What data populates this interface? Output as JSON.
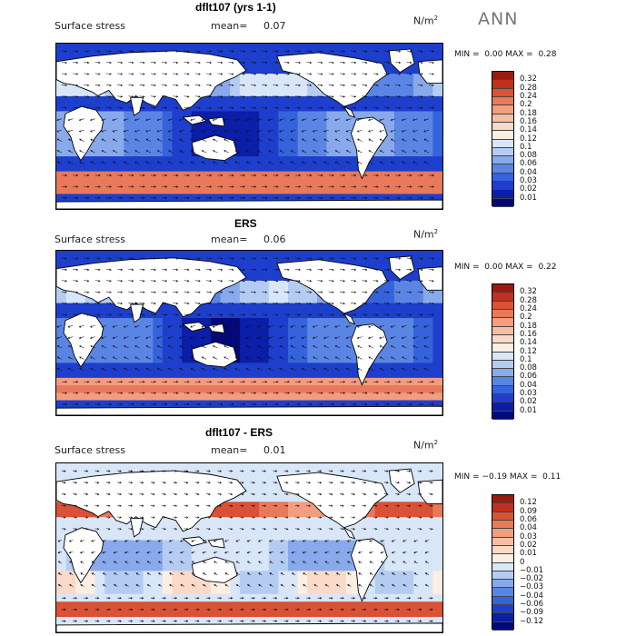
{
  "season": "ANN",
  "colors": {
    "land": "#ffffff",
    "coast": "#000000",
    "arrow": "#111111"
  },
  "panels": [
    {
      "title": "dflt107 (yrs 1-1)",
      "variable": "Surface stress",
      "mean_label": "mean=",
      "mean_value": "0.07",
      "units": "N/m",
      "units_exp": "2",
      "min_label": "MIN =",
      "min_value": "0.00",
      "max_label": "MAX =",
      "max_value": "0.28",
      "colorbar": {
        "levels": [
          "0.32",
          "0.28",
          "0.24",
          "0.2",
          "0.18",
          "0.16",
          "0.14",
          "0.12",
          "0.1",
          "0.08",
          "0.06",
          "0.04",
          "0.03",
          "0.02",
          "0.01"
        ],
        "colors": [
          "#9a1b10",
          "#c0301c",
          "#d95236",
          "#e8795a",
          "#f29d7f",
          "#f6bda3",
          "#f9d9c8",
          "#fbeee3",
          "#d8e6f8",
          "#b5ccf2",
          "#88aaec",
          "#5b85e4",
          "#3563db",
          "#1d3fcc",
          "#0b1ea8",
          "#03087a"
        ]
      }
    },
    {
      "title": "ERS",
      "variable": "Surface stress",
      "mean_label": "mean=",
      "mean_value": "0.06",
      "units": "N/m",
      "units_exp": "2",
      "min_label": "MIN =",
      "min_value": "0.00",
      "max_label": "MAX =",
      "max_value": "0.22",
      "colorbar": {
        "levels": [
          "0.32",
          "0.28",
          "0.24",
          "0.2",
          "0.18",
          "0.16",
          "0.14",
          "0.12",
          "0.1",
          "0.08",
          "0.06",
          "0.04",
          "0.03",
          "0.02",
          "0.01"
        ],
        "colors": [
          "#9a1b10",
          "#c0301c",
          "#d95236",
          "#e8795a",
          "#f29d7f",
          "#f6bda3",
          "#f9d9c8",
          "#fbeee3",
          "#d8e6f8",
          "#b5ccf2",
          "#88aaec",
          "#5b85e4",
          "#3563db",
          "#1d3fcc",
          "#0b1ea8",
          "#03087a"
        ]
      }
    },
    {
      "title": "dflt107 - ERS",
      "variable": "Surface stress",
      "mean_label": "mean=",
      "mean_value": "0.01",
      "units": "N/m",
      "units_exp": "2",
      "min_label": "MIN =",
      "min_value": "−0.19",
      "max_label": "MAX =",
      "max_value": "0.11",
      "colorbar": {
        "levels": [
          "0.12",
          "0.09",
          "0.06",
          "0.04",
          "0.03",
          "0.02",
          "0.01",
          "0",
          "−0.01",
          "−0.02",
          "−0.03",
          "−0.04",
          "−0.06",
          "−0.09",
          "−0.12"
        ],
        "colors": [
          "#9a1b10",
          "#c0301c",
          "#d95236",
          "#e8795a",
          "#f29d7f",
          "#f6bda3",
          "#f9d9c8",
          "#fbeee3",
          "#d8e6f8",
          "#b5ccf2",
          "#88aaec",
          "#5b85e4",
          "#3563db",
          "#1d3fcc",
          "#0b1ea8",
          "#03087a"
        ]
      }
    }
  ]
}
